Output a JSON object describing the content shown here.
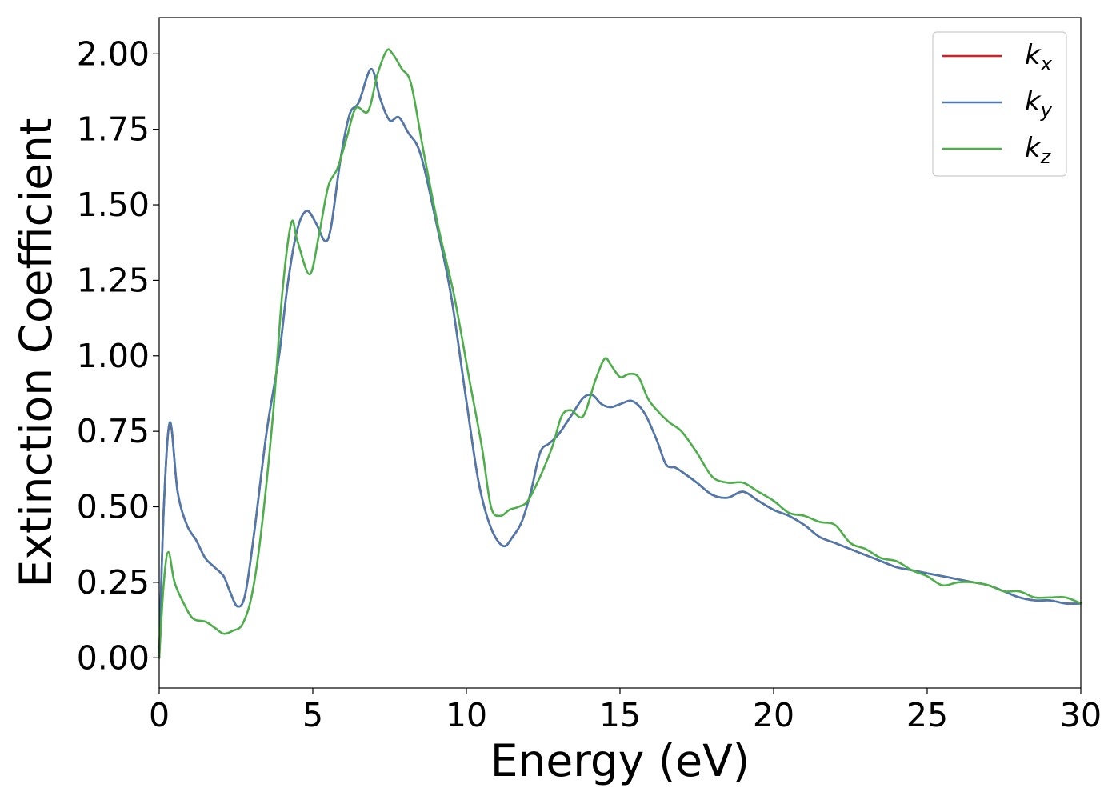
{
  "chart_data": {
    "type": "line",
    "title": "",
    "xlabel": "Energy (eV)",
    "ylabel": "Extinction Coefficient",
    "xlim": [
      0,
      30
    ],
    "ylim": [
      -0.1,
      2.12
    ],
    "xticks": [
      0,
      5,
      10,
      15,
      20,
      25,
      30
    ],
    "xtick_labels": [
      "0",
      "5",
      "10",
      "15",
      "20",
      "25",
      "30"
    ],
    "yticks": [
      0,
      0.25,
      0.5,
      0.75,
      1.0,
      1.25,
      1.5,
      1.75,
      2.0
    ],
    "ytick_labels": [
      "0.00",
      "0.25",
      "0.50",
      "0.75",
      "1.00",
      "1.25",
      "1.50",
      "1.75",
      "2.00"
    ],
    "grid": false,
    "legend_position": "top-right",
    "series": [
      {
        "name": "k_x",
        "label_base": "k",
        "label_sub": "x",
        "color": "#e41a1c",
        "x": [
          0,
          0.15,
          0.35,
          0.6,
          0.9,
          1.2,
          1.5,
          1.8,
          2.1,
          2.3,
          2.55,
          2.8,
          3.1,
          3.5,
          3.9,
          4.2,
          4.5,
          4.8,
          5.1,
          5.4,
          5.6,
          5.9,
          6.2,
          6.5,
          6.9,
          7.2,
          7.5,
          7.8,
          8.1,
          8.5,
          9.0,
          9.5,
          10.0,
          10.4,
          10.8,
          11.2,
          11.5,
          11.8,
          12.1,
          12.4,
          12.7,
          13.0,
          13.4,
          13.8,
          14.1,
          14.4,
          14.7,
          15.0,
          15.4,
          15.8,
          16.2,
          16.5,
          16.8,
          17.1,
          17.5,
          18.0,
          18.5,
          19.0,
          19.5,
          20.0,
          20.5,
          21.0,
          21.5,
          22.0,
          22.5,
          23.0,
          23.5,
          24.0,
          24.5,
          25.0,
          25.5,
          26.0,
          26.5,
          27.0,
          27.5,
          28.0,
          28.5,
          29.0,
          29.5,
          30.0
        ],
        "values": [
          0.0,
          0.5,
          0.78,
          0.55,
          0.44,
          0.39,
          0.33,
          0.3,
          0.27,
          0.22,
          0.17,
          0.21,
          0.42,
          0.75,
          1.0,
          1.25,
          1.42,
          1.48,
          1.44,
          1.38,
          1.43,
          1.65,
          1.8,
          1.84,
          1.95,
          1.85,
          1.78,
          1.79,
          1.74,
          1.67,
          1.45,
          1.2,
          0.85,
          0.58,
          0.43,
          0.37,
          0.4,
          0.45,
          0.55,
          0.68,
          0.71,
          0.74,
          0.8,
          0.86,
          0.87,
          0.84,
          0.83,
          0.84,
          0.85,
          0.81,
          0.72,
          0.64,
          0.63,
          0.61,
          0.58,
          0.54,
          0.53,
          0.55,
          0.52,
          0.49,
          0.47,
          0.44,
          0.4,
          0.38,
          0.36,
          0.34,
          0.32,
          0.3,
          0.29,
          0.28,
          0.27,
          0.26,
          0.25,
          0.24,
          0.22,
          0.2,
          0.19,
          0.19,
          0.18,
          0.18
        ]
      },
      {
        "name": "k_y",
        "label_base": "k",
        "label_sub": "y",
        "color": "#4a7ab0",
        "x": [
          0,
          0.15,
          0.35,
          0.6,
          0.9,
          1.2,
          1.5,
          1.8,
          2.1,
          2.3,
          2.55,
          2.8,
          3.1,
          3.5,
          3.9,
          4.2,
          4.5,
          4.8,
          5.1,
          5.4,
          5.6,
          5.9,
          6.2,
          6.5,
          6.9,
          7.2,
          7.5,
          7.8,
          8.1,
          8.5,
          9.0,
          9.5,
          10.0,
          10.4,
          10.8,
          11.2,
          11.5,
          11.8,
          12.1,
          12.4,
          12.7,
          13.0,
          13.4,
          13.8,
          14.1,
          14.4,
          14.7,
          15.0,
          15.4,
          15.8,
          16.2,
          16.5,
          16.8,
          17.1,
          17.5,
          18.0,
          18.5,
          19.0,
          19.5,
          20.0,
          20.5,
          21.0,
          21.5,
          22.0,
          22.5,
          23.0,
          23.5,
          24.0,
          24.5,
          25.0,
          25.5,
          26.0,
          26.5,
          27.0,
          27.5,
          28.0,
          28.5,
          29.0,
          29.5,
          30.0
        ],
        "values": [
          0.0,
          0.5,
          0.78,
          0.55,
          0.44,
          0.39,
          0.33,
          0.3,
          0.27,
          0.22,
          0.17,
          0.21,
          0.42,
          0.75,
          1.0,
          1.25,
          1.42,
          1.48,
          1.44,
          1.38,
          1.43,
          1.65,
          1.8,
          1.84,
          1.95,
          1.85,
          1.78,
          1.79,
          1.74,
          1.67,
          1.45,
          1.2,
          0.85,
          0.58,
          0.43,
          0.37,
          0.4,
          0.45,
          0.55,
          0.68,
          0.71,
          0.74,
          0.8,
          0.86,
          0.87,
          0.84,
          0.83,
          0.84,
          0.85,
          0.81,
          0.72,
          0.64,
          0.63,
          0.61,
          0.58,
          0.54,
          0.53,
          0.55,
          0.52,
          0.49,
          0.47,
          0.44,
          0.4,
          0.38,
          0.36,
          0.34,
          0.32,
          0.3,
          0.29,
          0.28,
          0.27,
          0.26,
          0.25,
          0.24,
          0.22,
          0.2,
          0.19,
          0.19,
          0.18,
          0.18
        ]
      },
      {
        "name": "k_z",
        "label_base": "k",
        "label_sub": "z",
        "color": "#4daf4a",
        "x": [
          0,
          0.15,
          0.3,
          0.5,
          0.8,
          1.1,
          1.5,
          1.8,
          2.1,
          2.4,
          2.7,
          3.0,
          3.3,
          3.7,
          4.0,
          4.3,
          4.5,
          4.9,
          5.2,
          5.5,
          5.8,
          6.1,
          6.4,
          6.8,
          7.1,
          7.4,
          7.6,
          7.9,
          8.2,
          8.6,
          9.1,
          9.6,
          10.1,
          10.5,
          10.8,
          11.1,
          11.4,
          11.7,
          12.0,
          12.4,
          12.8,
          13.1,
          13.4,
          13.8,
          14.2,
          14.5,
          14.7,
          15.0,
          15.3,
          15.6,
          15.9,
          16.2,
          16.6,
          17.0,
          17.5,
          18.0,
          18.5,
          19.0,
          19.5,
          20.0,
          20.5,
          21.0,
          21.5,
          22.0,
          22.5,
          23.0,
          23.5,
          24.0,
          24.5,
          25.0,
          25.5,
          26.0,
          26.5,
          27.0,
          27.5,
          28.0,
          28.5,
          29.0,
          29.5,
          30.0
        ],
        "values": [
          0.0,
          0.25,
          0.35,
          0.25,
          0.18,
          0.13,
          0.12,
          0.1,
          0.08,
          0.09,
          0.11,
          0.2,
          0.4,
          0.8,
          1.2,
          1.44,
          1.38,
          1.27,
          1.4,
          1.56,
          1.62,
          1.72,
          1.82,
          1.81,
          1.93,
          2.01,
          2.0,
          1.95,
          1.9,
          1.68,
          1.42,
          1.2,
          0.92,
          0.7,
          0.5,
          0.47,
          0.49,
          0.5,
          0.52,
          0.6,
          0.7,
          0.8,
          0.82,
          0.8,
          0.92,
          0.99,
          0.97,
          0.93,
          0.94,
          0.93,
          0.86,
          0.82,
          0.78,
          0.75,
          0.68,
          0.6,
          0.58,
          0.58,
          0.55,
          0.52,
          0.48,
          0.47,
          0.45,
          0.44,
          0.38,
          0.36,
          0.33,
          0.32,
          0.29,
          0.27,
          0.24,
          0.25,
          0.25,
          0.24,
          0.22,
          0.22,
          0.2,
          0.2,
          0.2,
          0.18
        ]
      }
    ]
  }
}
